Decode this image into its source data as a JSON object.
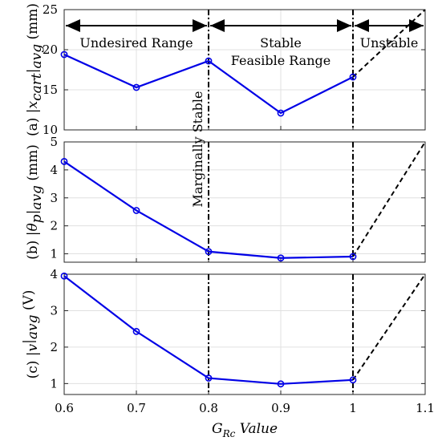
{
  "chart_data": {
    "type": "line",
    "x": [
      0.6,
      0.7,
      0.8,
      0.9,
      1.0
    ],
    "xlim": [
      0.6,
      1.1
    ],
    "x_ticks": [
      "0.6",
      "0.7",
      "0.8",
      "0.9",
      "1",
      "1.1"
    ],
    "xlabel_main": "G",
    "xlabel_sub": "Rc",
    "xlabel_suffix": "Value",
    "line_color": "#0000e6",
    "vertical_lines_x": [
      0.8,
      1.0
    ],
    "panels": [
      {
        "panel_label": "(a)",
        "ylabel_var": "|x",
        "ylabel_sub": "cart",
        "ylabel_avg": "|",
        "ylabel_avg_sub": "avg",
        "ylabel_unit": "(mm)",
        "values": [
          19.4,
          15.3,
          18.6,
          12.1,
          16.6
        ],
        "ylim": [
          10,
          25
        ],
        "y_ticks": [
          10,
          15,
          20,
          25
        ],
        "dashed_end": [
          1.1,
          25
        ],
        "grid": true
      },
      {
        "panel_label": "(b)",
        "ylabel_var": "|θ",
        "ylabel_sub": "p",
        "ylabel_avg": "|",
        "ylabel_avg_sub": "avg",
        "ylabel_unit": "(mm)",
        "values": [
          4.3,
          2.55,
          1.08,
          0.85,
          0.9
        ],
        "ylim": [
          0.7,
          5
        ],
        "y_ticks": [
          1,
          2,
          3,
          4,
          5
        ],
        "dashed_end": [
          1.1,
          5
        ],
        "grid": true
      },
      {
        "panel_label": "(c)",
        "ylabel_var": "|v",
        "ylabel_sub": "",
        "ylabel_avg": "|",
        "ylabel_avg_sub": "avg",
        "ylabel_unit": "(V)",
        "values": [
          3.95,
          2.43,
          1.15,
          0.99,
          1.1
        ],
        "ylim": [
          0.7,
          4
        ],
        "y_ticks": [
          1,
          2,
          3,
          4
        ],
        "dashed_end": [
          1.1,
          4
        ],
        "grid": true
      }
    ],
    "annotations": {
      "undesired": "Undesired Range",
      "stable_line1": "Stable",
      "stable_line2": "Feasible Range",
      "unstable": "Unstable",
      "marginal": "Marginally Stable"
    }
  }
}
